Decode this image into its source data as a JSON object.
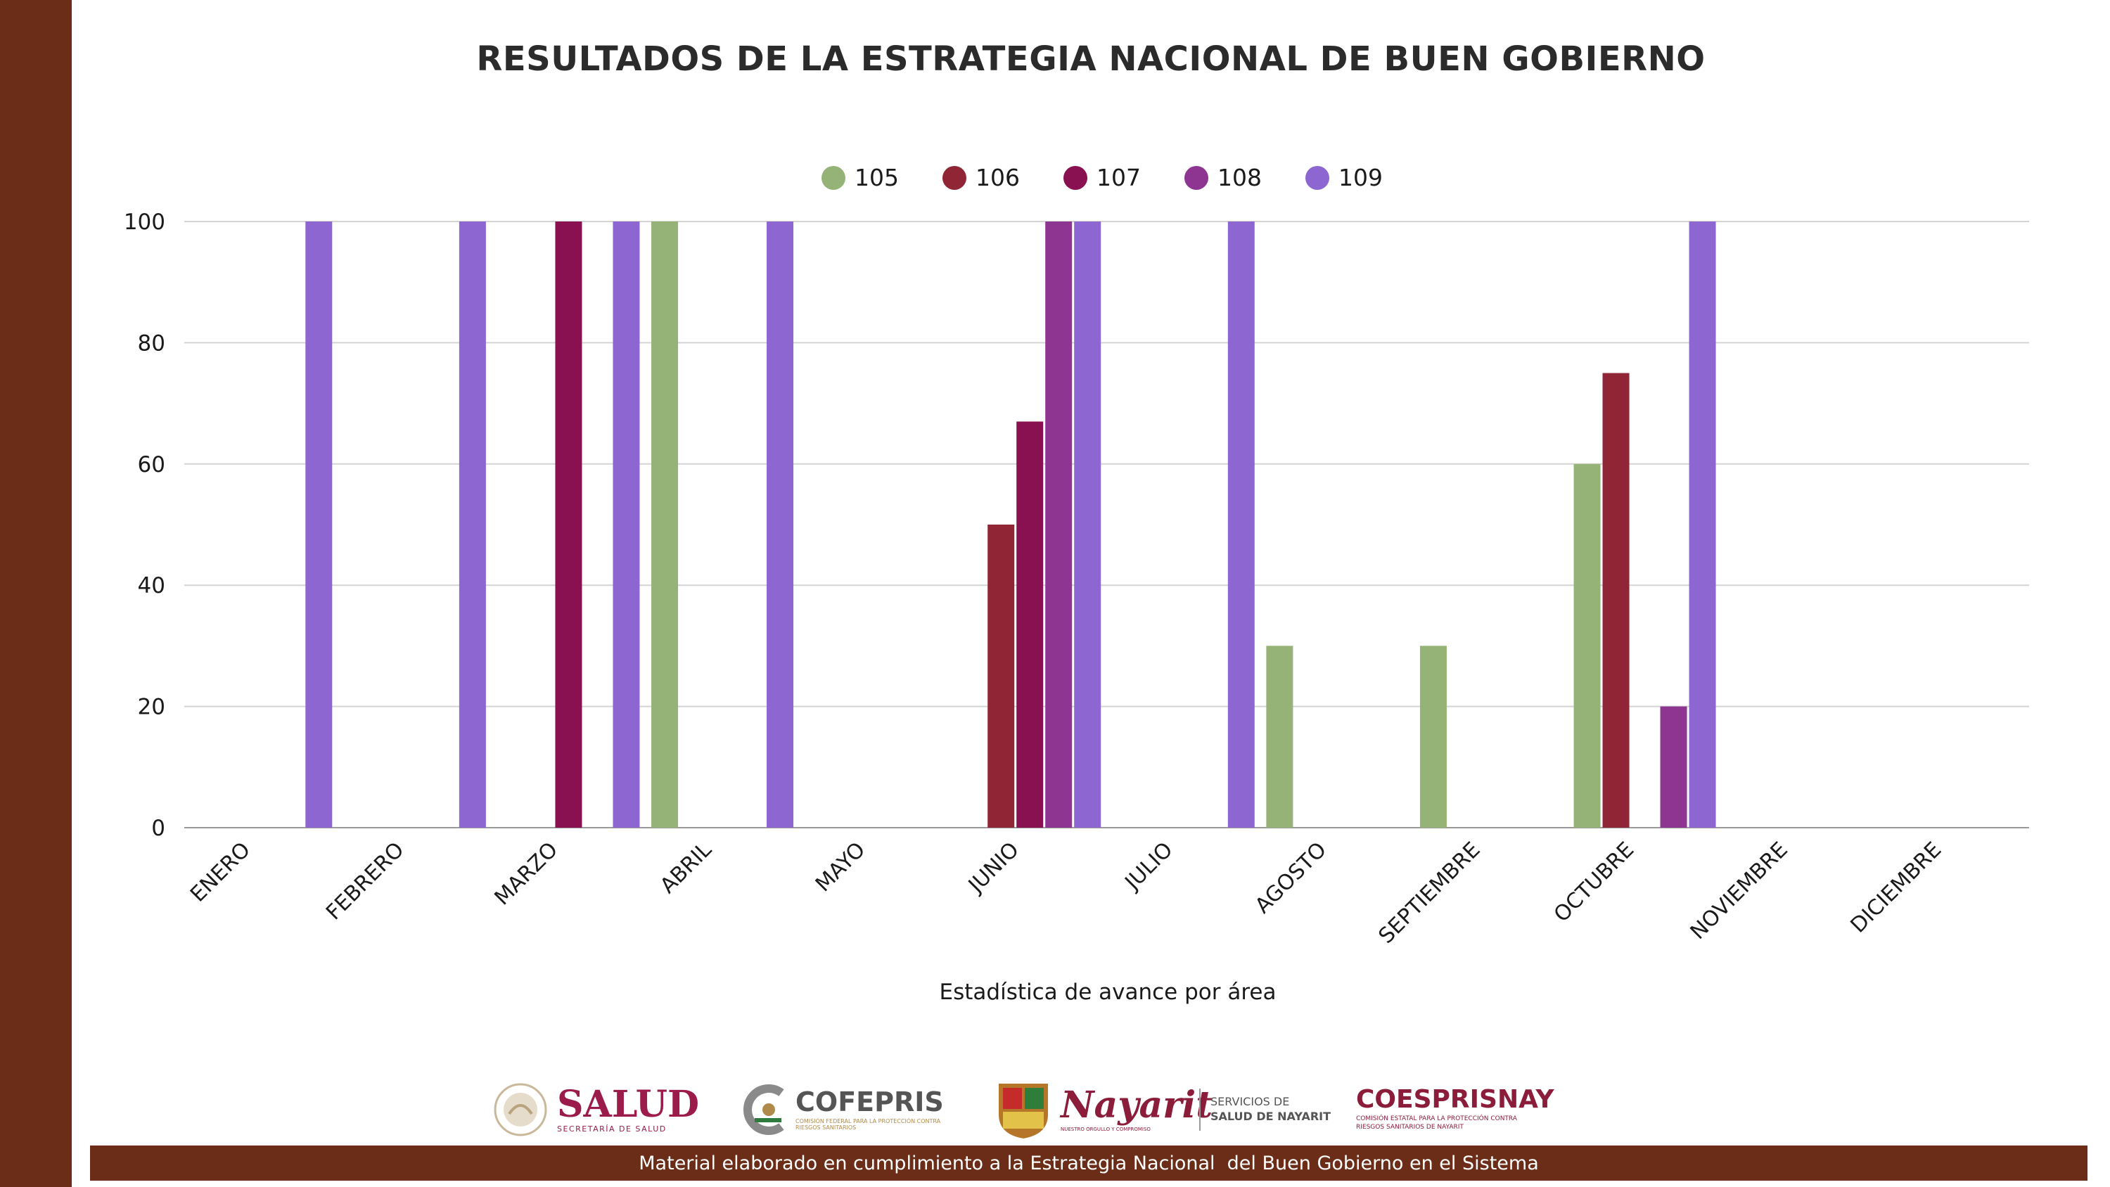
{
  "colors": {
    "frame": "#6b2d17",
    "footer": "#6b2d17",
    "grid": "#d4d4d4",
    "axis": "#9a9a9a",
    "text": "#1a1a1a",
    "salud": "#9b1b4a",
    "cofepris_c": "#b08a4a"
  },
  "chart_data": {
    "type": "bar",
    "title": "RESULTADOS DE LA ESTRATEGIA NACIONAL DE BUEN GOBIERNO",
    "xlabel": "Estadística de avance por área",
    "ylabel": "",
    "ylim": [
      0,
      100
    ],
    "yticks": [
      0,
      20,
      40,
      60,
      80,
      100
    ],
    "grid": true,
    "legend_position": "top-center",
    "categories": [
      "ENERO",
      "FEBRERO",
      "MARZO",
      "ABRIL",
      "MAYO",
      "JUNIO",
      "JULIO",
      "AGOSTO",
      "SEPTIEMBRE",
      "OCTUBRE",
      "NOVIEMBRE",
      "DICIEMBRE"
    ],
    "series": [
      {
        "name": "105",
        "color": "#96b377",
        "values": [
          null,
          null,
          null,
          100,
          null,
          null,
          null,
          30,
          30,
          60,
          null,
          null
        ]
      },
      {
        "name": "106",
        "color": "#8f2535",
        "values": [
          null,
          null,
          null,
          null,
          null,
          50,
          null,
          null,
          null,
          75,
          null,
          null
        ]
      },
      {
        "name": "107",
        "color": "#8a1151",
        "values": [
          null,
          null,
          100,
          null,
          null,
          67,
          null,
          null,
          null,
          null,
          null,
          null
        ]
      },
      {
        "name": "108",
        "color": "#8e3592",
        "values": [
          null,
          null,
          null,
          null,
          null,
          100,
          null,
          null,
          null,
          20,
          null,
          null
        ]
      },
      {
        "name": "109",
        "color": "#8d66d1",
        "values": [
          100,
          100,
          100,
          100,
          null,
          100,
          100,
          null,
          null,
          100,
          null,
          null
        ]
      }
    ]
  },
  "logos": {
    "salud": {
      "name": "SALUD",
      "subtitle": "SECRETARÍA DE SALUD"
    },
    "cofepris": {
      "name": "COFEPRIS",
      "subtitle": "COMISIÓN FEDERAL PARA LA PROTECCIÓN CONTRA RIESGOS SANITARIOS"
    },
    "nayarit": {
      "name": "Nayarit",
      "subtitle": "NUESTRO ORGULLO Y COMPROMISO"
    },
    "servicios": {
      "line1": "SERVICIOS DE",
      "line2": "SALUD DE NAYARIT"
    },
    "coesprisnay": {
      "name": "COESPRISNAY",
      "subtitle": "COMISIÓN ESTATAL PARA LA PROTECCIÓN CONTRA RIESGOS SANITARIOS DE NAYARIT"
    }
  },
  "footer": {
    "text": "Material elaborado en cumplimiento a la Estrategia Nacional  del Buen Gobierno en el Sistema"
  }
}
